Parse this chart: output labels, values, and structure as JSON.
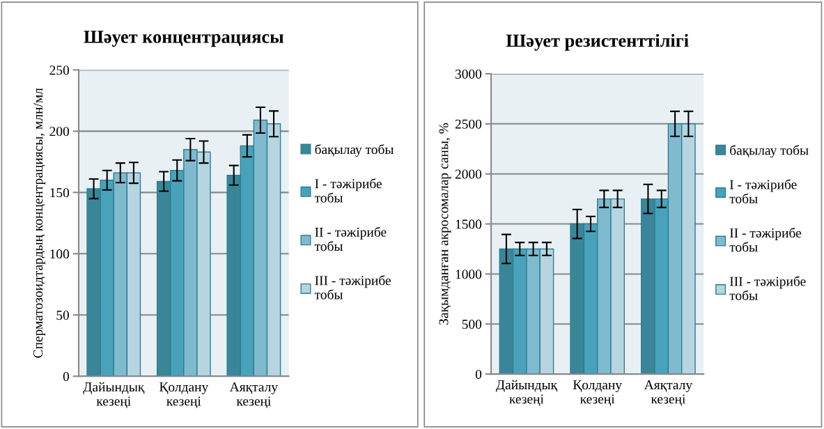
{
  "chart_data": [
    {
      "type": "bar",
      "title": "Шәует концентрациясы",
      "ylabel": "Сперматозоидтардың концентрациясы, млн/мл",
      "categories": [
        "Дайындық\nкезеңі",
        "Қолдану\nкезеңі",
        "Аяқталу\nкезеңі"
      ],
      "ylim": [
        0,
        250
      ],
      "yticks": [
        0,
        50,
        100,
        150,
        200,
        250
      ],
      "grid": "y",
      "legend": "right",
      "series": [
        {
          "name": "бақылау тобы",
          "color": "#3a8699",
          "values": [
            153,
            159,
            164
          ],
          "errors": [
            8,
            8,
            8
          ]
        },
        {
          "name": "I - тәжірибе\nтобы",
          "color": "#48a2ba",
          "values": [
            160,
            168,
            188
          ],
          "errors": [
            8,
            8.5,
            9
          ]
        },
        {
          "name": "II - тәжірибе\nтобы",
          "color": "#80bace",
          "values": [
            166,
            185,
            209
          ],
          "errors": [
            8,
            9,
            10.5
          ]
        },
        {
          "name": "III - тәжірибе\nтобы",
          "color": "#b6d5e0",
          "values": [
            166,
            183,
            206
          ],
          "errors": [
            8.5,
            9,
            10.5
          ]
        }
      ]
    },
    {
      "type": "bar",
      "title": "Шәует резистенттілігі",
      "ylabel": "Зақымданған акросомалар саны, %",
      "categories": [
        "Дайындық\nкезеңі",
        "Қолдану\nкезеңі",
        "Аяқталу\nкезеңі"
      ],
      "ylim": [
        0,
        3000
      ],
      "yticks": [
        0,
        500,
        1000,
        1500,
        2000,
        2500,
        3000
      ],
      "grid": "y",
      "legend": "right",
      "series": [
        {
          "name": "бақылау тобы",
          "color": "#3a8699",
          "values": [
            1250,
            1500,
            1750
          ],
          "errors": [
            145,
            145,
            145
          ]
        },
        {
          "name": "I - тәжірибе\nтобы",
          "color": "#48a2ba",
          "values": [
            1250,
            1500,
            1750
          ],
          "errors": [
            65,
            75,
            85
          ]
        },
        {
          "name": "II - тәжірибе\nтобы",
          "color": "#80bace",
          "values": [
            1250,
            1750,
            2500
          ],
          "errors": [
            65,
            85,
            125
          ]
        },
        {
          "name": "III - тәжірибе\nтобы",
          "color": "#b6d5e0",
          "values": [
            1250,
            1750,
            2500
          ],
          "errors": [
            65,
            85,
            125
          ]
        }
      ]
    }
  ]
}
